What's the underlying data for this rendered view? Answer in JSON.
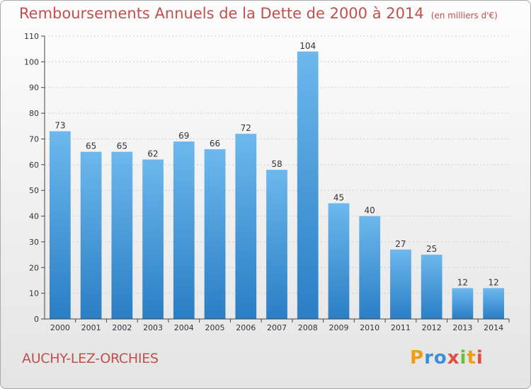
{
  "header": {
    "title": "Remboursements Annuels de la Dette de 2000 à 2014",
    "unit": "(en milliers d'€)"
  },
  "footer": {
    "commune": "AUCHY-LEZ-ORCHIES",
    "logo_letters": [
      "P",
      "r",
      "o",
      "x",
      "i",
      "t",
      "i"
    ],
    "logo_colors": [
      "#f39c12",
      "#3b8fd9",
      "#3b8fd9",
      "#e74c3c",
      "#6cbf2f",
      "#f39c12",
      "#e74c3c"
    ]
  },
  "chart_data": {
    "type": "bar",
    "categories": [
      "2000",
      "2001",
      "2002",
      "2003",
      "2004",
      "2005",
      "2006",
      "2007",
      "2008",
      "2009",
      "2010",
      "2011",
      "2012",
      "2013",
      "2014"
    ],
    "values": [
      73,
      65,
      65,
      62,
      69,
      66,
      72,
      58,
      104,
      45,
      40,
      27,
      25,
      12,
      12
    ],
    "yticks": [
      0,
      10,
      20,
      30,
      40,
      50,
      60,
      70,
      80,
      90,
      100,
      110
    ],
    "ylim": [
      0,
      110
    ],
    "grid": true,
    "bar_color": "#4a9fe0",
    "bar_color_light": "#6cb8ee",
    "bar_color_dark": "#2a7ec4"
  }
}
